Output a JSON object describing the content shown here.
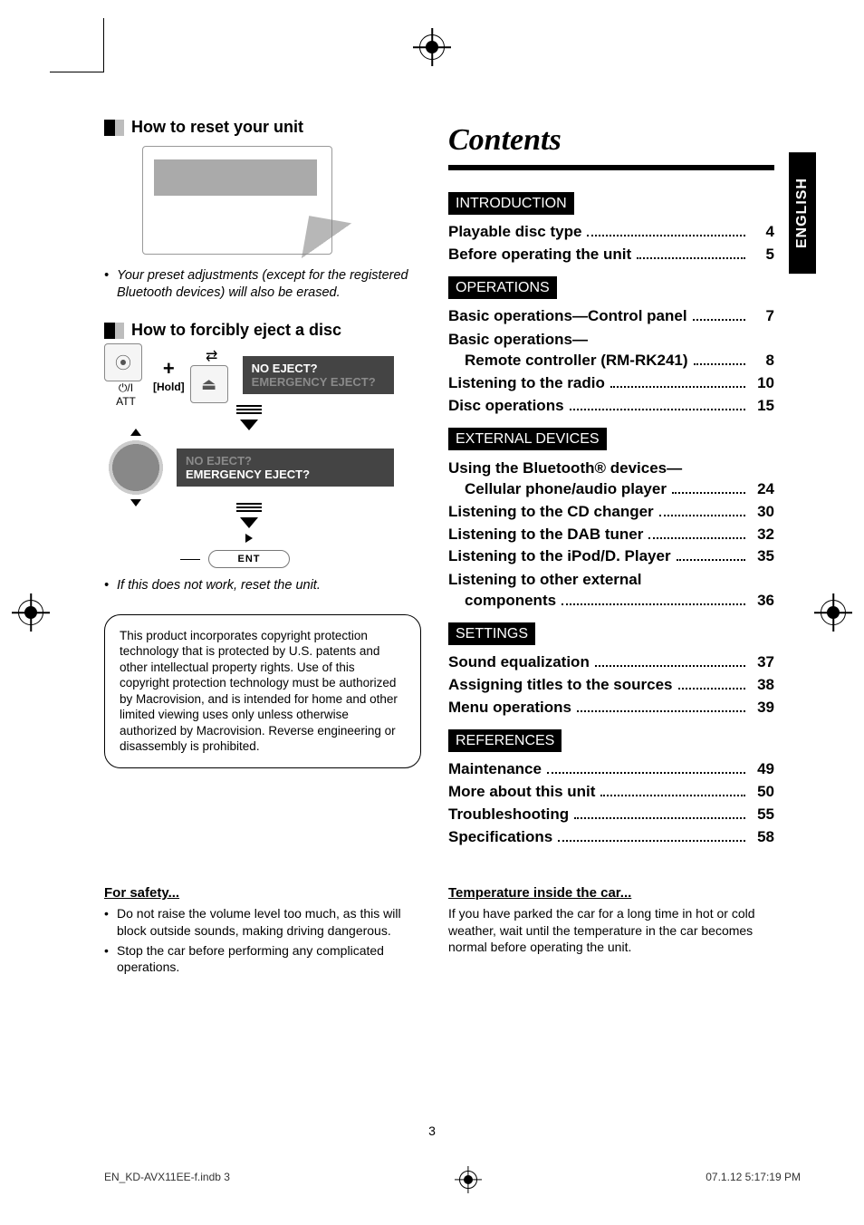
{
  "registration": {
    "color": "#000000"
  },
  "left": {
    "reset_heading": "How to reset your unit",
    "reset_note": "Your preset adjustments (except for the registered Bluetooth devices) will also be erased.",
    "eject_heading": "How to forcibly eject a disc",
    "eject_hold": "[Hold]",
    "eject_att": "⏻/ ATT",
    "eject_msg_q": "NO EJECT?",
    "eject_msg_dim": "EMERGENCY EJECT?",
    "eject_msg2_dim": "NO EJECT?",
    "eject_msg2": "EMERGENCY EJECT?",
    "ent_label": "ENT",
    "eject_note": "If this does not work, reset the unit.",
    "copy_box": "This product incorporates copyright protection technology that is protected by U.S. patents and other intellectual property rights. Use of this copyright protection technology must be authorized by Macrovision, and is intended for home and other limited viewing uses only unless otherwise authorized by Macrovision. Reverse engineering or disassembly is prohibited."
  },
  "contents": {
    "title": "Contents",
    "lang": "ENGLISH",
    "sections": [
      {
        "label": "INTRODUCTION",
        "items": [
          {
            "title": "Playable disc type",
            "page": "4"
          },
          {
            "title": "Before operating the unit",
            "page": "5"
          }
        ]
      },
      {
        "label": "OPERATIONS",
        "items": [
          {
            "title": "Basic operations—Control panel",
            "page": "7"
          },
          {
            "head": "Basic operations—"
          },
          {
            "title": "Remote controller (RM-RK241)",
            "page": "8",
            "indent": true
          },
          {
            "title": "Listening to the radio",
            "page": "10"
          },
          {
            "title": "Disc operations",
            "page": "15"
          }
        ]
      },
      {
        "label": "EXTERNAL DEVICES",
        "items": [
          {
            "head": "Using the Bluetooth® devices—"
          },
          {
            "title": "Cellular phone/audio player",
            "page": "24",
            "indent": true
          },
          {
            "title": "Listening to the CD changer",
            "page": "30"
          },
          {
            "title": "Listening to the DAB tuner",
            "page": "32"
          },
          {
            "title": "Listening to the iPod/D. Player",
            "page": "35"
          },
          {
            "head": "Listening to other external"
          },
          {
            "title": "components",
            "page": "36",
            "indent": true
          }
        ]
      },
      {
        "label": "SETTINGS",
        "items": [
          {
            "title": "Sound equalization",
            "page": "37"
          },
          {
            "title": "Assigning titles to the sources",
            "page": "38"
          },
          {
            "title": "Menu operations",
            "page": "39"
          }
        ]
      },
      {
        "label": "REFERENCES",
        "items": [
          {
            "title": "Maintenance",
            "page": "49"
          },
          {
            "title": "More about this unit",
            "page": "50"
          },
          {
            "title": "Troubleshooting",
            "page": "55"
          },
          {
            "title": "Specifications",
            "page": "58"
          }
        ]
      }
    ]
  },
  "notes": {
    "safety_h": "For safety...",
    "safety_b1": "Do not raise the volume level too much, as this will block outside sounds, making driving dangerous.",
    "safety_b2": "Stop the car before performing any complicated operations.",
    "temp_h": "Temperature inside the car...",
    "temp_body": "If you have parked the car for a long time in hot or cold weather, wait until the temperature in the car becomes normal before operating the unit."
  },
  "page_number": "3",
  "footer_left": "EN_KD-AVX11EE-f.indb   3",
  "footer_right": "07.1.12   5:17:19 PM"
}
